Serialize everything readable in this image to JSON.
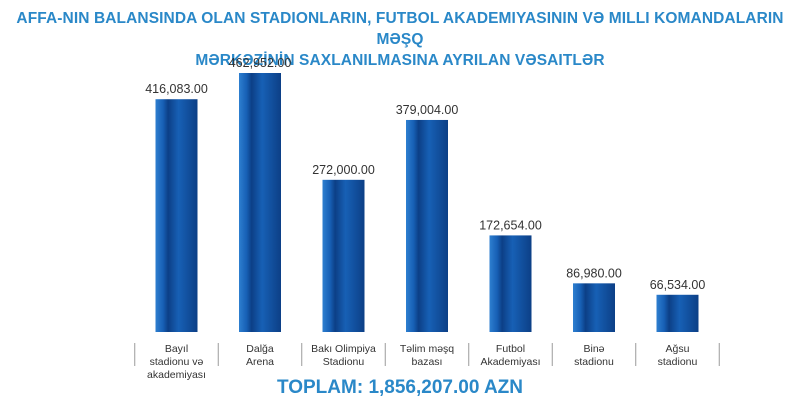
{
  "title_lines": [
    "AFFA-NIN BALANSINDA OLAN STADIONLARIN, FUTBOL AKADEMIYASININ VƏ MILLI KOMANDALARIN MƏŞQ",
    "MƏRKƏZİNİN SAXLANILMASINA AYRILAN VƏSAITLƏR"
  ],
  "total_text": "TOPLAM: 1,856,207.00 AZN",
  "chart_data": {
    "type": "bar",
    "categories": [
      [
        "Bayıl",
        "stadionu və",
        "akademiyası"
      ],
      [
        "Dalğa",
        "Arena"
      ],
      [
        "Bakı Olimpiya",
        "Stadionu"
      ],
      [
        "Təlim məşq",
        "bazası"
      ],
      [
        "Futbol",
        "Akademiyası"
      ],
      [
        "Binə",
        "stadionu"
      ],
      [
        "Ağsu",
        "stadionu"
      ]
    ],
    "values": [
      416083.0,
      462952.0,
      272000.0,
      379004.0,
      172654.0,
      86980.0,
      66534.0
    ],
    "value_labels": [
      "416,083.00",
      "462,952.00",
      "272,000.00",
      "379,004.00",
      "172,654.00",
      "86,980.00",
      "66,534.00"
    ],
    "ylim": [
      0,
      462952
    ],
    "grid": false,
    "legend": "none",
    "colors": {
      "bar_dark": "#0c3f86",
      "bar_mid": "#1760b5",
      "bar_light": "#2e7fd0",
      "title": "#2a88c8",
      "divider": "#9a9a9a",
      "label": "#333333"
    }
  }
}
